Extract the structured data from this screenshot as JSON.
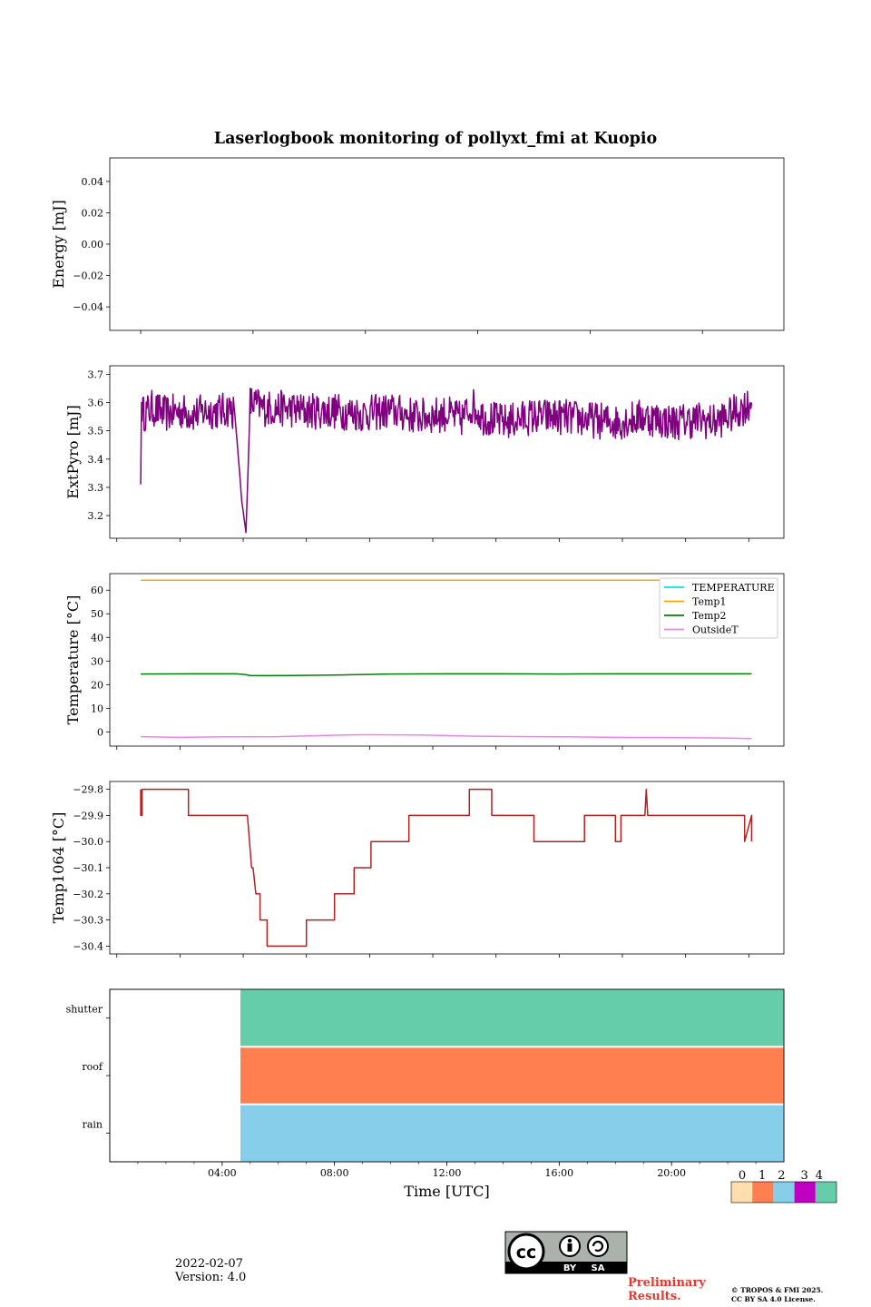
{
  "chart_data": [
    {
      "type": "line",
      "panel": "energy",
      "title": "Laserlogbook monitoring of pollyxt_fmi at Kuopio",
      "ylabel": "Energy [mJ]",
      "ylim": [
        -0.055,
        0.055
      ],
      "yticks": [
        0.04,
        0.02,
        0.0,
        -0.02,
        -0.04
      ],
      "ytick_labels": [
        "0.04",
        "0.02",
        "0.00",
        "−0.02",
        "−0.04"
      ],
      "series": []
    },
    {
      "type": "line",
      "panel": "extpyro",
      "ylabel": "ExtPyro [mJ]",
      "ylim": [
        3.12,
        3.73
      ],
      "yticks": [
        3.7,
        3.6,
        3.5,
        3.4,
        3.3,
        3.2
      ],
      "ytick_labels": [
        "3.7",
        "3.6",
        "3.5",
        "3.4",
        "3.3",
        "3.2"
      ],
      "series": [
        {
          "name": "ExtPyro",
          "color": "#800080",
          "x": [
            1.1,
            1.13,
            1.2,
            1.5,
            2.0,
            2.5,
            3.0,
            3.5,
            4.0,
            4.3,
            4.45,
            4.5,
            4.6,
            4.7,
            4.85,
            5.0,
            5.5,
            6.0,
            7.0,
            8.0,
            9.0,
            10.0,
            11.0,
            12.0,
            12.5,
            12.9,
            13.3,
            14.0,
            15.0,
            16.0,
            17.0,
            18.0,
            19.0,
            20.0,
            21.0,
            21.5,
            22.0,
            22.85
          ],
          "values": [
            3.31,
            3.6,
            3.56,
            3.58,
            3.56,
            3.57,
            3.56,
            3.57,
            3.57,
            3.58,
            3.56,
            3.5,
            3.38,
            3.25,
            3.14,
            3.6,
            3.58,
            3.58,
            3.57,
            3.57,
            3.56,
            3.57,
            3.55,
            3.56,
            3.54,
            3.59,
            3.55,
            3.53,
            3.55,
            3.55,
            3.54,
            3.53,
            3.55,
            3.53,
            3.54,
            3.53,
            3.55,
            3.6
          ]
        }
      ]
    },
    {
      "type": "line",
      "panel": "temperature",
      "ylabel": "Temperature [°C]",
      "ylim": [
        -6,
        67
      ],
      "yticks": [
        60,
        50,
        40,
        30,
        20,
        10,
        0
      ],
      "ytick_labels": [
        "60",
        "50",
        "40",
        "30",
        "20",
        "10",
        "0"
      ],
      "legend_position": "top-right",
      "series": [
        {
          "name": "TEMPERATURE",
          "color": "#00e5e5",
          "x": [],
          "values": []
        },
        {
          "name": "Temp1",
          "color": "#ffa500",
          "x": [
            1.1,
            22.85
          ],
          "values": [
            64.2,
            64.2
          ]
        },
        {
          "name": "Temp2",
          "color": "#008000",
          "x": [
            1.1,
            3.0,
            4.5,
            4.8,
            5.0,
            5.5,
            6.5,
            8.0,
            10.0,
            12.0,
            14.0,
            16.0,
            18.0,
            20.0,
            22.85
          ],
          "values": [
            24.5,
            24.6,
            24.6,
            24.3,
            23.9,
            23.8,
            23.9,
            24.1,
            24.5,
            24.6,
            24.6,
            24.5,
            24.6,
            24.6,
            24.6
          ]
        },
        {
          "name": "OutsideT",
          "color": "#ee82ee",
          "x": [
            1.1,
            2.5,
            4.0,
            6.0,
            8.0,
            9.0,
            11.0,
            13.0,
            15.0,
            16.5,
            18.0,
            20.0,
            22.0,
            22.85
          ],
          "values": [
            -2.0,
            -2.3,
            -2.1,
            -2.0,
            -1.4,
            -1.2,
            -1.3,
            -1.8,
            -2.0,
            -2.1,
            -2.3,
            -2.4,
            -2.6,
            -2.8
          ]
        }
      ]
    },
    {
      "type": "line",
      "panel": "temp1064",
      "ylabel": "Temp1064 [°C]",
      "ylim": [
        -30.43,
        -29.77
      ],
      "yticks": [
        -29.8,
        -29.9,
        -30.0,
        -30.1,
        -30.2,
        -30.3,
        -30.4
      ],
      "ytick_labels": [
        "−29.8",
        "−29.9",
        "−30.0",
        "−30.1",
        "−30.2",
        "−30.3",
        "−30.4"
      ],
      "series": [
        {
          "name": "Temp1064",
          "color": "#b22222",
          "x": [
            1.1,
            1.1,
            1.15,
            1.15,
            2.8,
            2.8,
            4.9,
            5.05,
            5.1,
            5.2,
            5.35,
            5.35,
            5.6,
            5.6,
            7.0,
            7.0,
            8.0,
            8.0,
            8.2,
            8.2,
            8.7,
            8.7,
            9.3,
            9.3,
            10.0,
            10.0,
            10.65,
            10.65,
            12.8,
            12.8,
            13.6,
            13.6,
            15.1,
            15.1,
            16.9,
            16.9,
            18.0,
            18.0,
            18.1,
            18.2,
            18.2,
            19.05,
            19.1,
            19.15,
            22.6,
            22.6,
            22.85,
            22.85
          ],
          "values": [
            -29.8,
            -29.9,
            -29.9,
            -29.8,
            -29.8,
            -29.9,
            -29.9,
            -30.1,
            -30.1,
            -30.2,
            -30.2,
            -30.3,
            -30.3,
            -30.4,
            -30.4,
            -30.3,
            -30.3,
            -30.2,
            -30.2,
            -30.2,
            -30.2,
            -30.1,
            -30.1,
            -30.0,
            -30.0,
            -30.0,
            -30.0,
            -29.9,
            -29.9,
            -29.8,
            -29.8,
            -29.9,
            -29.9,
            -30.0,
            -30.0,
            -29.9,
            -29.9,
            -30.0,
            -30.0,
            -30.0,
            -29.9,
            -29.9,
            -29.8,
            -29.9,
            -29.9,
            -30.0,
            -29.9,
            -30.0
          ]
        }
      ]
    },
    {
      "type": "heatmap",
      "panel": "flags",
      "xlabel": "Time [UTC]",
      "x_range": [
        0,
        24
      ],
      "xticks": [
        4,
        8,
        12,
        16,
        20
      ],
      "xtick_labels": [
        "04:00",
        "08:00",
        "12:00",
        "16:00",
        "20:00"
      ],
      "rows": [
        "shutter",
        "roof",
        "rain"
      ],
      "bands": [
        {
          "row": "shutter",
          "start": 4.65,
          "end": 24,
          "value": 4
        },
        {
          "row": "roof",
          "start": 4.65,
          "end": 24,
          "value": 1
        },
        {
          "row": "rain",
          "start": 4.65,
          "end": 24,
          "value": 2
        }
      ],
      "colorbar": {
        "ticks": [
          "0",
          "1",
          "2",
          "3",
          "4"
        ],
        "colors": [
          "#ffdead",
          "#ff7f50",
          "#87ceeb",
          "#c000c0",
          "#66cdaa"
        ]
      }
    }
  ],
  "footer": {
    "date": "2022-02-07",
    "version": "Version: 4.0",
    "license_badge": {
      "cc": "cc",
      "by": "BY",
      "sa": "SA"
    },
    "preliminary_line1": "Preliminary",
    "preliminary_line2": "Results.",
    "copyright_line1": "© TROPOS & FMI 2025.",
    "copyright_line2": "CC BY SA 4.0 License."
  }
}
